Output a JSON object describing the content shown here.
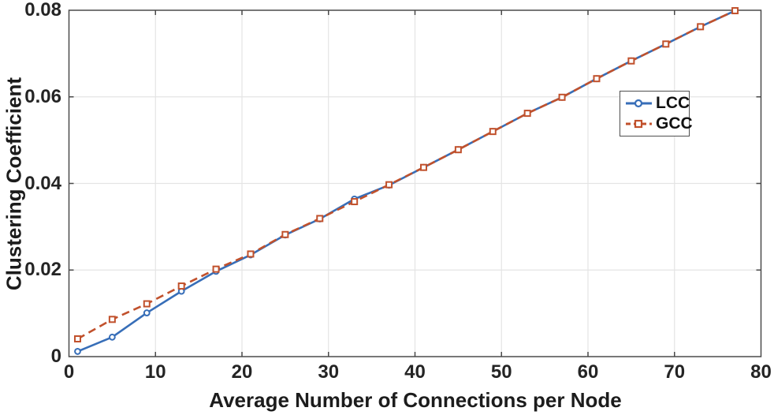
{
  "chart_data": {
    "type": "line",
    "title": "",
    "xlabel": "Average Number of Connections per Node",
    "ylabel": "Clustering Coefficient",
    "xlim": [
      0,
      80
    ],
    "ylim": [
      0,
      0.08
    ],
    "x_ticks": [
      0,
      10,
      20,
      30,
      40,
      50,
      60,
      70,
      80
    ],
    "x_tick_labels": [
      "0",
      "10",
      "20",
      "30",
      "40",
      "50",
      "60",
      "70",
      "80"
    ],
    "y_ticks": [
      0,
      0.02,
      0.04,
      0.06,
      0.08
    ],
    "y_tick_labels": [
      "0",
      "0.02",
      "0.04",
      "0.06",
      "0.08"
    ],
    "grid": true,
    "legend_position": "inside-upper-right",
    "x": [
      1,
      5,
      9,
      13,
      17,
      21,
      25,
      29,
      33,
      37,
      41,
      45,
      49,
      53,
      57,
      61,
      65,
      69,
      73,
      77
    ],
    "series": [
      {
        "name": "LCC",
        "color": "#376eb8",
        "line_style": "solid",
        "marker": "circle",
        "values": [
          0.0012,
          0.0045,
          0.0101,
          0.0151,
          0.0197,
          0.0235,
          0.0281,
          0.0318,
          0.0364,
          0.0396,
          0.0437,
          0.0478,
          0.052,
          0.0562,
          0.0599,
          0.0642,
          0.0683,
          0.0722,
          0.0762,
          0.0799
        ]
      },
      {
        "name": "GCC",
        "color": "#c1512c",
        "line_style": "dashed",
        "marker": "square",
        "values": [
          0.0041,
          0.0086,
          0.0122,
          0.0163,
          0.0202,
          0.0237,
          0.0282,
          0.0319,
          0.0358,
          0.0397,
          0.0437,
          0.0478,
          0.052,
          0.0562,
          0.0599,
          0.0642,
          0.0683,
          0.0722,
          0.0762,
          0.0799
        ]
      }
    ]
  },
  "colors": {
    "background": "#ffffff",
    "grid": "#e4e4e4",
    "axis": "#4a4a4a",
    "tick_text": "#242424",
    "lcc_blue": "#376eb8",
    "gcc_orange": "#c1512c"
  }
}
